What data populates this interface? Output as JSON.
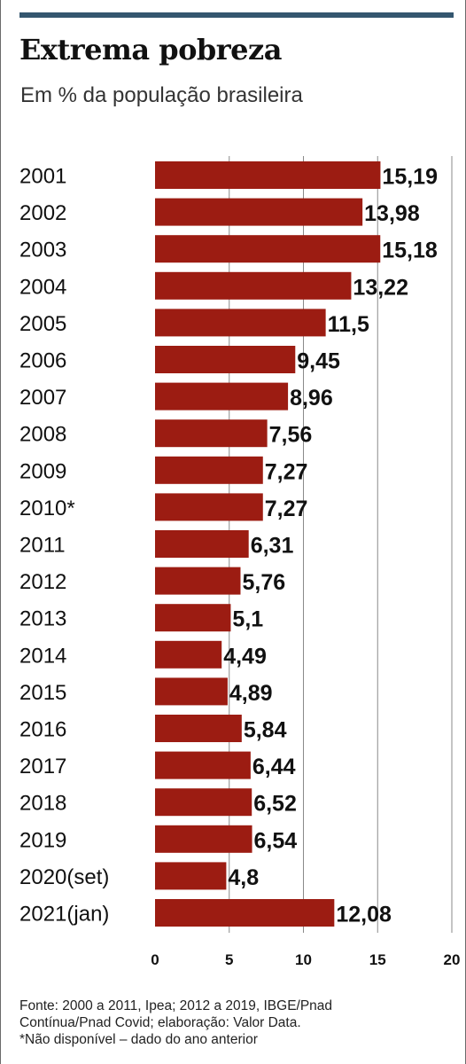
{
  "title": "Extrema pobreza",
  "subtitle": "Em % da população brasileira",
  "footer": {
    "line1": "Fonte:  2000 a 2011, Ipea; 2012 a 2019, IBGE/Pnad",
    "line2": "Contínua/Pnad Covid; elaboração: Valor Data.",
    "line3": "*Não disponível – dado do ano anterior"
  },
  "colors": {
    "bar": "#9c1c12",
    "top_bar": "#34566f"
  },
  "chart_data": {
    "type": "bar",
    "orientation": "horizontal",
    "title": "Extrema pobreza",
    "subtitle": "Em % da população brasileira",
    "categories": [
      "2001",
      "2002",
      "2003",
      "2004",
      "2005",
      "2006",
      "2007",
      "2008",
      "2009",
      "2010*",
      "2011",
      "2012",
      "2013",
      "2014",
      "2015",
      "2016",
      "2017",
      "2018",
      "2019",
      "2020(set)",
      "2021(jan)"
    ],
    "values": [
      15.19,
      13.98,
      15.18,
      13.22,
      11.5,
      9.45,
      8.96,
      7.56,
      7.27,
      7.27,
      6.31,
      5.76,
      5.1,
      4.49,
      4.89,
      5.84,
      6.44,
      6.52,
      6.54,
      4.8,
      12.08
    ],
    "value_labels": [
      "15,19",
      "13,98",
      "15,18",
      "13,22",
      "11,5",
      "9,45",
      "8,96",
      "7,56",
      "7,27",
      "7,27",
      "6,31",
      "5,76",
      "5,1",
      "4,49",
      "4,89",
      "5,84",
      "6,44",
      "6,52",
      "6,54",
      "4,8",
      "12,08"
    ],
    "xlim": [
      0,
      20
    ],
    "xticks": [
      "0",
      "5",
      "10",
      "15",
      "20"
    ],
    "grid": true
  }
}
